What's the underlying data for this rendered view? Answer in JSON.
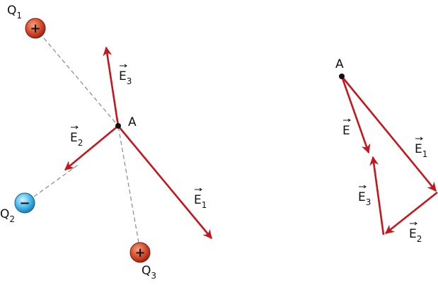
{
  "left": {
    "charges": [
      {
        "label": "Q",
        "sub": "1",
        "sign": "+"
      },
      {
        "label": "Q",
        "sub": "2",
        "sign": "−"
      },
      {
        "label": "Q",
        "sub": "3",
        "sign": "+"
      }
    ],
    "point": "A",
    "vectors": [
      {
        "label": "E",
        "sub": "1"
      },
      {
        "label": "E",
        "sub": "2"
      },
      {
        "label": "E",
        "sub": "3"
      }
    ]
  },
  "right": {
    "point": "A",
    "vectors": [
      {
        "label": "E"
      },
      {
        "label": "E",
        "sub": "1"
      },
      {
        "label": "E",
        "sub": "2"
      },
      {
        "label": "E",
        "sub": "3"
      }
    ]
  }
}
